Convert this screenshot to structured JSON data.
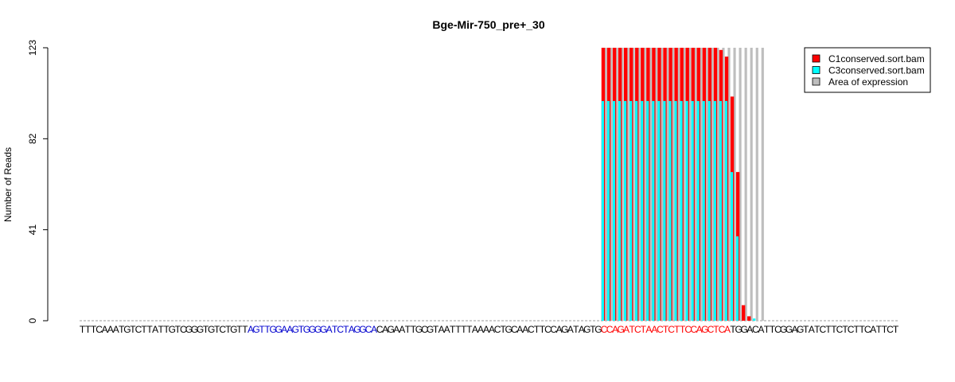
{
  "chart_data": {
    "type": "bar",
    "title": "Bge-Mir-750_pre+_30",
    "xlabel": "",
    "ylabel": "Number of Reads",
    "ylim": [
      0,
      123
    ],
    "yticks": [
      "0",
      "41",
      "82",
      "123"
    ],
    "sequence": "TTTCAAATGTCTTATTGTCGGGTGTCTGTTAGTTGGAAGTGGGGATCTAGGCACAGAATTGCGTAATTTTAAAACTGCAACTTCCAGATAGTGCCAGATCTAACTCTTCCAGCTCATGGACATTCGGAGTATCTTCTCTTCATTCT",
    "sequence_colors": {
      "default": "#000000",
      "star": "#0000cd",
      "mature": "#ff0000"
    },
    "highlight_regions": [
      {
        "kind": "star",
        "start": 31,
        "end": 53
      },
      {
        "kind": "mature",
        "start": 94,
        "end": 116
      }
    ],
    "area_of_expression": {
      "start": 94,
      "end": 122,
      "value": 123
    },
    "series": [
      {
        "name": "C1conserved.sort.bam",
        "color": "#ff0000",
        "values": [
          {
            "pos": 94,
            "value": 123
          },
          {
            "pos": 95,
            "value": 123
          },
          {
            "pos": 96,
            "value": 123
          },
          {
            "pos": 97,
            "value": 123
          },
          {
            "pos": 98,
            "value": 123
          },
          {
            "pos": 99,
            "value": 123
          },
          {
            "pos": 100,
            "value": 123
          },
          {
            "pos": 101,
            "value": 123
          },
          {
            "pos": 102,
            "value": 123
          },
          {
            "pos": 103,
            "value": 123
          },
          {
            "pos": 104,
            "value": 123
          },
          {
            "pos": 105,
            "value": 123
          },
          {
            "pos": 106,
            "value": 123
          },
          {
            "pos": 107,
            "value": 123
          },
          {
            "pos": 108,
            "value": 123
          },
          {
            "pos": 109,
            "value": 123
          },
          {
            "pos": 110,
            "value": 123
          },
          {
            "pos": 111,
            "value": 123
          },
          {
            "pos": 112,
            "value": 123
          },
          {
            "pos": 113,
            "value": 123
          },
          {
            "pos": 114,
            "value": 123
          },
          {
            "pos": 115,
            "value": 122
          },
          {
            "pos": 116,
            "value": 119
          },
          {
            "pos": 117,
            "value": 101
          },
          {
            "pos": 118,
            "value": 67
          },
          {
            "pos": 119,
            "value": 7
          },
          {
            "pos": 120,
            "value": 2
          }
        ]
      },
      {
        "name": "C3conserved.sort.bam",
        "color": "#00ffff",
        "values": [
          {
            "pos": 94,
            "value": 99
          },
          {
            "pos": 95,
            "value": 99
          },
          {
            "pos": 96,
            "value": 99
          },
          {
            "pos": 97,
            "value": 99
          },
          {
            "pos": 98,
            "value": 99
          },
          {
            "pos": 99,
            "value": 99
          },
          {
            "pos": 100,
            "value": 99
          },
          {
            "pos": 101,
            "value": 99
          },
          {
            "pos": 102,
            "value": 99
          },
          {
            "pos": 103,
            "value": 99
          },
          {
            "pos": 104,
            "value": 99
          },
          {
            "pos": 105,
            "value": 99
          },
          {
            "pos": 106,
            "value": 99
          },
          {
            "pos": 107,
            "value": 99
          },
          {
            "pos": 108,
            "value": 99
          },
          {
            "pos": 109,
            "value": 99
          },
          {
            "pos": 110,
            "value": 99
          },
          {
            "pos": 111,
            "value": 99
          },
          {
            "pos": 112,
            "value": 99
          },
          {
            "pos": 113,
            "value": 99
          },
          {
            "pos": 114,
            "value": 99
          },
          {
            "pos": 115,
            "value": 99
          },
          {
            "pos": 116,
            "value": 99
          },
          {
            "pos": 117,
            "value": 67
          },
          {
            "pos": 118,
            "value": 38
          },
          {
            "pos": 119,
            "value": 0
          },
          {
            "pos": 120,
            "value": 0
          },
          {
            "pos": 121,
            "value": 1
          }
        ]
      }
    ],
    "area_color": "#bebebe",
    "legend": {
      "placement": "top-right",
      "entries": [
        {
          "label": "C1conserved.sort.bam",
          "color": "#ff0000"
        },
        {
          "label": "C3conserved.sort.bam",
          "color": "#00ffff"
        },
        {
          "label": "Area of expression",
          "color": "#bebebe"
        }
      ]
    },
    "grid": false
  }
}
